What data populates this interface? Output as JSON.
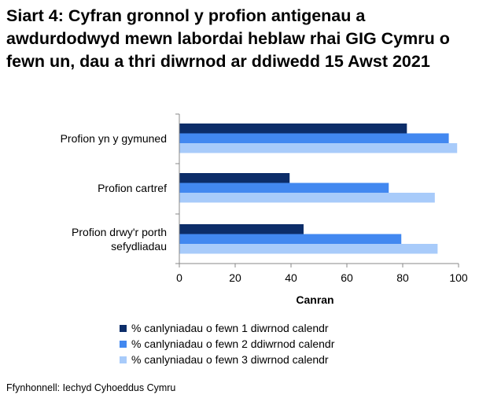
{
  "title": "Siart 4: Cyfran gronnol y profion antigenau a awdurdodwyd mewn labordai heblaw rhai GIG Cymru o fewn un, dau a thri diwrnod ar ddiwedd 15 Awst 2021",
  "source": "Ffynhonnell: Iechyd Cyhoeddus Cymru",
  "colors": {
    "series": [
      "#0c2d69",
      "#4288f0",
      "#a8cbfa"
    ],
    "axis": "#888888"
  },
  "chart_data": {
    "type": "bar",
    "orientation": "horizontal",
    "categories": [
      [
        "Profion yn y gymuned"
      ],
      [
        "Profion cartref"
      ],
      [
        "Profion drwy'r porth",
        "sefydliadau"
      ]
    ],
    "series": [
      {
        "name": "% canlyniadau o fewn 1 diwrnod calendr",
        "values": [
          81.5,
          39.5,
          44.5
        ]
      },
      {
        "name": "% canlyniadau o fewn 2 ddiwrnod calendr",
        "values": [
          96.5,
          75.0,
          79.5
        ]
      },
      {
        "name": "% canlyniadau o fewn 3 diwrnod calendr",
        "values": [
          99.5,
          91.5,
          92.5
        ]
      }
    ],
    "xlabel": "Canran",
    "xlim": [
      0,
      100
    ],
    "xticks": [
      "0",
      "20",
      "40",
      "60",
      "80",
      "100"
    ],
    "grid": false,
    "legend_position": "bottom"
  }
}
